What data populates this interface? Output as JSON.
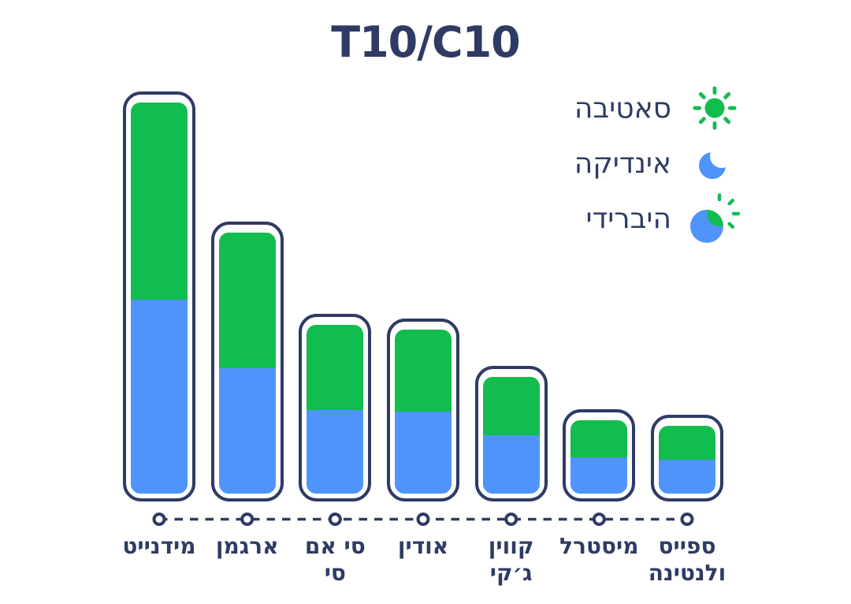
{
  "title": "T10/C10",
  "colors": {
    "navy": "#2F3B64",
    "green": "#12BD4F",
    "blue": "#4F94FB",
    "background": "#FFFFFF",
    "axis_point_fill": "#FFFFFF"
  },
  "legend": {
    "items": [
      {
        "label": "סאטיבה",
        "icon": "sun-icon",
        "color": "#12BD4F"
      },
      {
        "label": "אינדיקה",
        "icon": "moon-icon",
        "color": "#4F94FB"
      },
      {
        "label": "היברידי",
        "icon": "hybrid-sun-moon-icon",
        "colors": [
          "#4F94FB",
          "#12BD4F"
        ]
      }
    ]
  },
  "chart_data": {
    "type": "bar",
    "stacked": true,
    "orientation": "vertical",
    "title": "T10/C10",
    "xlabel": "",
    "ylabel": "",
    "grid": false,
    "legend_position": "top-right",
    "axis_style": "dashed-line-with-circle-markers",
    "value_note": "relative units estimated from pixel heights; tallest bar total = 100",
    "ylim": [
      0,
      100
    ],
    "categories": [
      "מידנייט",
      "ארגמן",
      "סי אם סי",
      "אודין",
      "קווין ג׳קי",
      "מיסטרל",
      "ספייס ולנטינה"
    ],
    "category_label_lines": [
      [
        "מידנייט"
      ],
      [
        "ארגמן"
      ],
      [
        "סי אם",
        "סי"
      ],
      [
        "אודין"
      ],
      [
        "קווין",
        "ג׳קי"
      ],
      [
        "מיסטרל"
      ],
      [
        "ספייס",
        "ולנטינה"
      ]
    ],
    "series": [
      {
        "name": "סאטיבה",
        "position": "top",
        "color": "#12BD4F",
        "values": [
          50.4,
          34.6,
          21.8,
          21.0,
          14.9,
          9.5,
          8.7
        ]
      },
      {
        "name": "אינדיקה",
        "position": "bottom",
        "color": "#4F94FB",
        "values": [
          49.6,
          32.1,
          21.4,
          21.0,
          14.9,
          9.3,
          8.7
        ]
      }
    ],
    "totals": [
      100.0,
      66.7,
      43.2,
      42.0,
      29.8,
      18.8,
      17.4
    ]
  }
}
